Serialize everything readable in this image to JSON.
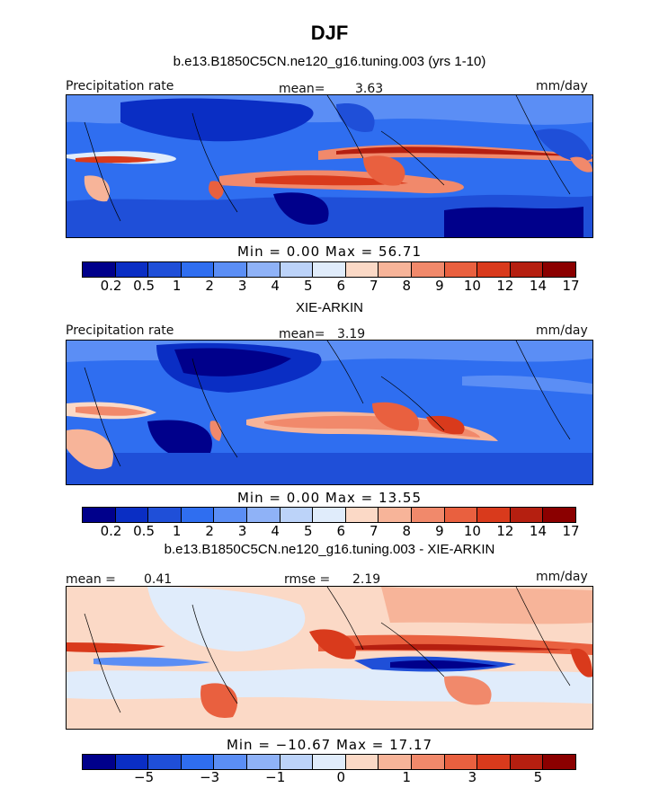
{
  "title": "DJF",
  "chart_data": [
    {
      "type": "heatmap",
      "subtitle": "b.e13.B1850C5CN.ne120_g16.tuning.003 (yrs 1-10)",
      "left_label": "Precipitation rate",
      "mean_label": "mean=",
      "mean_value": "3.63",
      "units": "mm/day",
      "min_label": "Min =",
      "min_value": "0.00",
      "max_label": "Max =",
      "max_value": "56.71",
      "min": 0.0,
      "max": 56.71,
      "levels": [
        "0.2",
        "0.5",
        "1",
        "2",
        "3",
        "4",
        "5",
        "6",
        "7",
        "8",
        "9",
        "10",
        "12",
        "14",
        "17"
      ],
      "colors": [
        "#00008b",
        "#0a2ec4",
        "#1f4fd8",
        "#2f6ef0",
        "#5b8ef5",
        "#8fb2f7",
        "#bcd3f9",
        "#e0ecfb",
        "#fbd9c6",
        "#f7b499",
        "#f1896b",
        "#e9603f",
        "#d93a1c",
        "#b51f10",
        "#8b0000"
      ]
    },
    {
      "type": "heatmap",
      "subtitle": "XIE-ARKIN",
      "left_label": "Precipitation rate",
      "mean_label": "mean=",
      "mean_value": "3.19",
      "units": "mm/day",
      "min_label": "Min =",
      "min_value": "0.00",
      "max_label": "Max =",
      "max_value": "13.55",
      "min": 0.0,
      "max": 13.55,
      "levels": [
        "0.2",
        "0.5",
        "1",
        "2",
        "3",
        "4",
        "5",
        "6",
        "7",
        "8",
        "9",
        "10",
        "12",
        "14",
        "17"
      ],
      "colors": [
        "#00008b",
        "#0a2ec4",
        "#1f4fd8",
        "#2f6ef0",
        "#5b8ef5",
        "#8fb2f7",
        "#bcd3f9",
        "#e0ecfb",
        "#fbd9c6",
        "#f7b499",
        "#f1896b",
        "#e9603f",
        "#d93a1c",
        "#b51f10",
        "#8b0000"
      ]
    },
    {
      "type": "heatmap",
      "subtitle": "b.e13.B1850C5CN.ne120_g16.tuning.003 - XIE-ARKIN",
      "mean_label": "mean =",
      "mean_value": "0.41",
      "rmse_label": "rmse =",
      "rmse_value": "2.19",
      "units": "mm/day",
      "min_label": "Min =",
      "min_value": "−10.67",
      "max_label": "Max =",
      "max_value": "17.17",
      "min": -10.67,
      "max": 17.17,
      "levels": [
        "−5",
        "−3",
        "−1",
        "0",
        "1",
        "3",
        "5"
      ],
      "colors": [
        "#00008b",
        "#0a2ec4",
        "#1f4fd8",
        "#2f6ef0",
        "#5b8ef5",
        "#8fb2f7",
        "#bcd3f9",
        "#e0ecfb",
        "#fbd9c6",
        "#f7b499",
        "#f1896b",
        "#e9603f",
        "#d93a1c",
        "#b51f10",
        "#8b0000"
      ]
    }
  ]
}
